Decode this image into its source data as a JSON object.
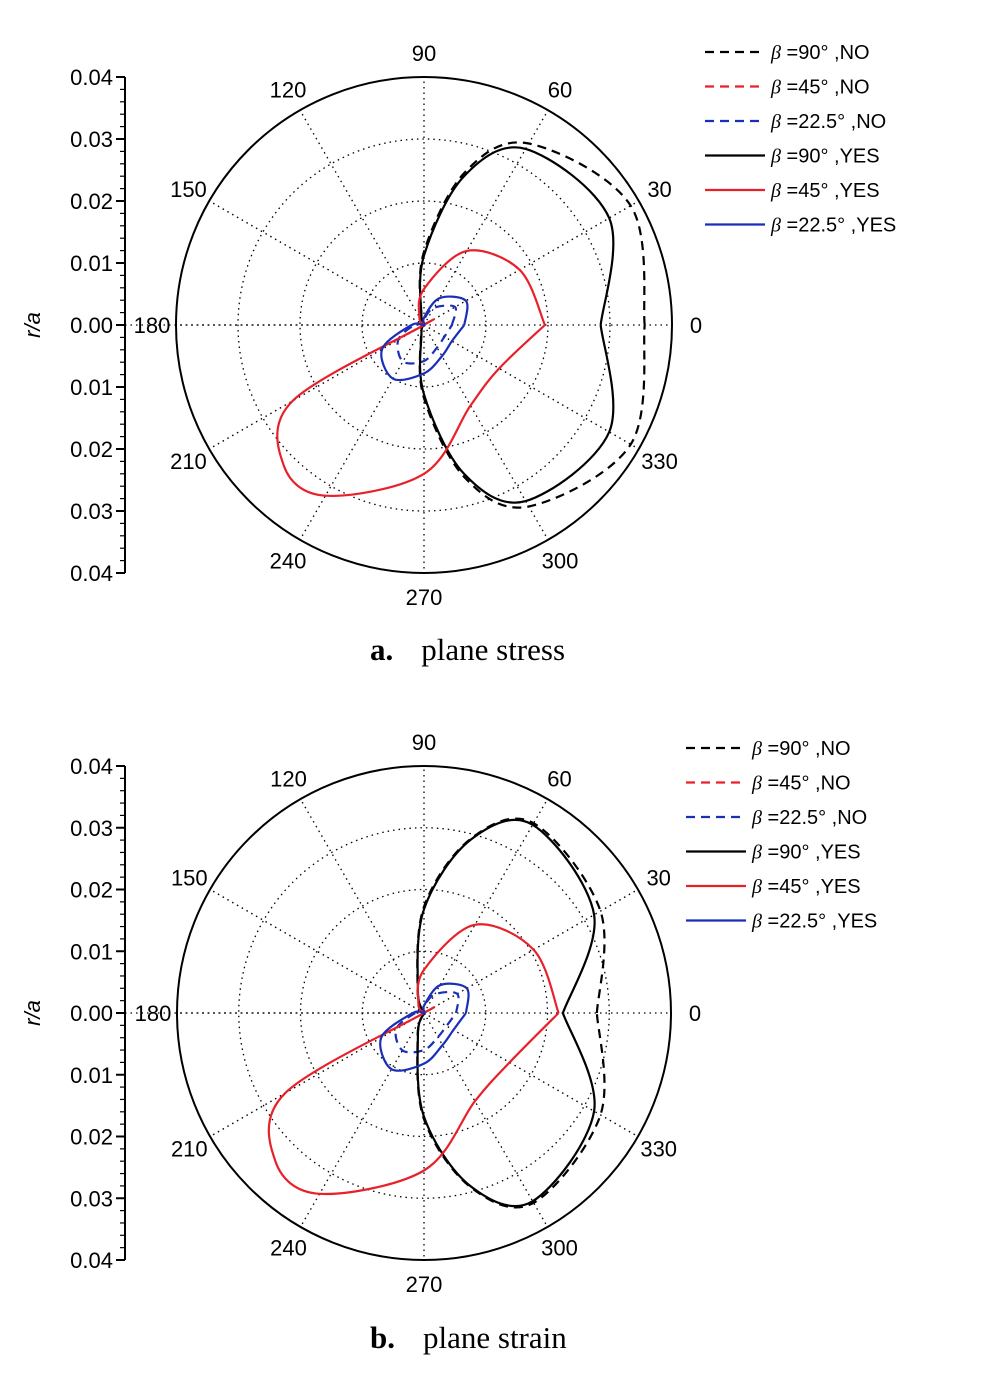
{
  "chart_data": [
    {
      "type": "polar",
      "caption_letter": "a.",
      "caption_text": "plane stress",
      "ylabel": "r/a",
      "radial_ticks": [
        "0.04",
        "0.03",
        "0.02",
        "0.01",
        "0.00",
        "0.01",
        "0.02",
        "0.03",
        "0.04"
      ],
      "rlim": [
        0,
        0.04
      ],
      "angle_ticks": [
        "0",
        "30",
        "60",
        "90",
        "120",
        "150",
        "180",
        "210",
        "240",
        "270",
        "300",
        "330"
      ],
      "grid": true,
      "legend_position": "top-right",
      "series": [
        {
          "beta": "90°",
          "flag": ",NO",
          "color": "#000000",
          "style": "dashed",
          "points": [
            [
              0,
              0.0356
            ],
            [
              30,
              0.0385
            ],
            [
              60,
              0.0338
            ],
            [
              75,
              0.0255
            ],
            [
              90,
              0.0118
            ],
            [
              105,
              0.0019
            ],
            [
              120,
              0.0
            ],
            [
              240,
              0.0
            ],
            [
              255,
              0.0019
            ],
            [
              270,
              0.0118
            ],
            [
              285,
              0.0255
            ],
            [
              300,
              0.0338
            ],
            [
              330,
              0.0385
            ],
            [
              360,
              0.0356
            ]
          ]
        },
        {
          "beta": "45°",
          "flag": ",NO",
          "color": "#e8202a",
          "style": "dashed",
          "points": []
        },
        {
          "beta": "22.5°",
          "flag": ",NO",
          "color": "#1a2fb8",
          "style": "dashed",
          "points": [
            [
              0,
              0.0045
            ],
            [
              30,
              0.0058
            ],
            [
              60,
              0.0032
            ],
            [
              90,
              0.0009
            ],
            [
              135,
              0.0
            ],
            [
              180,
              0.0015
            ],
            [
              210,
              0.0048
            ],
            [
              240,
              0.0068
            ],
            [
              270,
              0.0058
            ],
            [
              300,
              0.0042
            ],
            [
              330,
              0.0038
            ],
            [
              360,
              0.0045
            ]
          ]
        },
        {
          "beta": "90°",
          "flag": ",YES",
          "color": "#000000",
          "style": "solid",
          "points": [
            [
              0,
              0.0285
            ],
            [
              30,
              0.0345
            ],
            [
              60,
              0.0328
            ],
            [
              75,
              0.0248
            ],
            [
              90,
              0.0112
            ],
            [
              105,
              0.0016
            ],
            [
              120,
              0.0
            ],
            [
              240,
              0.0
            ],
            [
              255,
              0.0016
            ],
            [
              270,
              0.0112
            ],
            [
              285,
              0.0248
            ],
            [
              300,
              0.0328
            ],
            [
              330,
              0.0345
            ],
            [
              360,
              0.0285
            ]
          ]
        },
        {
          "beta": "45°",
          "flag": ",YES",
          "color": "#e8202a",
          "style": "solid",
          "points": [
            [
              0,
              0.0195
            ],
            [
              30,
              0.0178
            ],
            [
              60,
              0.0138
            ],
            [
              90,
              0.0058
            ],
            [
              120,
              0.0015
            ],
            [
              150,
              0.0002
            ],
            [
              180,
              0.0
            ],
            [
              210,
              0.0245
            ],
            [
              225,
              0.032
            ],
            [
              240,
              0.0318
            ],
            [
              270,
              0.024
            ],
            [
              300,
              0.015
            ],
            [
              330,
              0.014
            ],
            [
              360,
              0.0195
            ]
          ]
        },
        {
          "beta": "22.5°",
          "flag": ",YES",
          "color": "#1a2fb8",
          "style": "solid",
          "points": [
            [
              0,
              0.0065
            ],
            [
              30,
              0.0078
            ],
            [
              60,
              0.005
            ],
            [
              90,
              0.0012
            ],
            [
              135,
              0.0
            ],
            [
              180,
              0.002
            ],
            [
              210,
              0.0078
            ],
            [
              240,
              0.01
            ],
            [
              270,
              0.0078
            ],
            [
              300,
              0.0058
            ],
            [
              330,
              0.0052
            ],
            [
              360,
              0.0065
            ]
          ]
        }
      ]
    },
    {
      "type": "polar",
      "caption_letter": "b.",
      "caption_text": "plane strain",
      "ylabel": "r/a",
      "radial_ticks": [
        "0.04",
        "0.03",
        "0.02",
        "0.01",
        "0.00",
        "0.01",
        "0.02",
        "0.03",
        "0.04"
      ],
      "rlim": [
        0,
        0.04
      ],
      "angle_ticks": [
        "0",
        "30",
        "60",
        "90",
        "120",
        "150",
        "180",
        "210",
        "240",
        "270",
        "300",
        "330"
      ],
      "grid": true,
      "legend_position": "top-right",
      "series": [
        {
          "beta": "90°",
          "flag": ",NO",
          "color": "#000000",
          "style": "dashed",
          "points": [
            [
              0,
              0.028
            ],
            [
              30,
              0.033
            ],
            [
              60,
              0.0355
            ],
            [
              75,
              0.0292
            ],
            [
              90,
              0.0172
            ],
            [
              105,
              0.004
            ],
            [
              120,
              0.0
            ],
            [
              240,
              0.0
            ],
            [
              255,
              0.004
            ],
            [
              270,
              0.0172
            ],
            [
              285,
              0.0292
            ],
            [
              300,
              0.0355
            ],
            [
              330,
              0.033
            ],
            [
              360,
              0.028
            ]
          ]
        },
        {
          "beta": "45°",
          "flag": ",NO",
          "color": "#e8202a",
          "style": "dashed",
          "points": []
        },
        {
          "beta": "22.5°",
          "flag": ",NO",
          "color": "#1a2fb8",
          "style": "dashed",
          "points": [
            [
              0,
              0.0052
            ],
            [
              30,
              0.0062
            ],
            [
              60,
              0.0035
            ],
            [
              90,
              0.001
            ],
            [
              135,
              0.0
            ],
            [
              180,
              0.0014
            ],
            [
              210,
              0.0052
            ],
            [
              240,
              0.007
            ],
            [
              270,
              0.006
            ],
            [
              300,
              0.0045
            ],
            [
              330,
              0.0042
            ],
            [
              360,
              0.0052
            ]
          ]
        },
        {
          "beta": "90°",
          "flag": ",YES",
          "color": "#000000",
          "style": "solid",
          "points": [
            [
              0,
              0.0225
            ],
            [
              30,
              0.0318
            ],
            [
              60,
              0.0352
            ],
            [
              75,
              0.029
            ],
            [
              90,
              0.0168
            ],
            [
              105,
              0.0038
            ],
            [
              120,
              0.0
            ],
            [
              240,
              0.0
            ],
            [
              255,
              0.0038
            ],
            [
              270,
              0.0168
            ],
            [
              285,
              0.029
            ],
            [
              300,
              0.0352
            ],
            [
              330,
              0.0318
            ],
            [
              360,
              0.0225
            ]
          ]
        },
        {
          "beta": "45°",
          "flag": ",YES",
          "color": "#e8202a",
          "style": "solid",
          "points": [
            [
              0,
              0.0218
            ],
            [
              30,
              0.0205
            ],
            [
              60,
              0.0165
            ],
            [
              90,
              0.007
            ],
            [
              120,
              0.0018
            ],
            [
              150,
              0.0002
            ],
            [
              180,
              0.0
            ],
            [
              210,
              0.026
            ],
            [
              225,
              0.034
            ],
            [
              240,
              0.0338
            ],
            [
              270,
              0.0255
            ],
            [
              300,
              0.0165
            ],
            [
              330,
              0.016
            ],
            [
              360,
              0.0218
            ]
          ]
        },
        {
          "beta": "22.5°",
          "flag": ",YES",
          "color": "#1a2fb8",
          "style": "solid",
          "points": [
            [
              0,
              0.0068
            ],
            [
              30,
              0.008
            ],
            [
              60,
              0.0052
            ],
            [
              90,
              0.0012
            ],
            [
              135,
              0.0
            ],
            [
              180,
              0.0018
            ],
            [
              210,
              0.008
            ],
            [
              240,
              0.0105
            ],
            [
              270,
              0.0082
            ],
            [
              300,
              0.006
            ],
            [
              330,
              0.0055
            ],
            [
              360,
              0.0068
            ]
          ]
        }
      ]
    }
  ]
}
